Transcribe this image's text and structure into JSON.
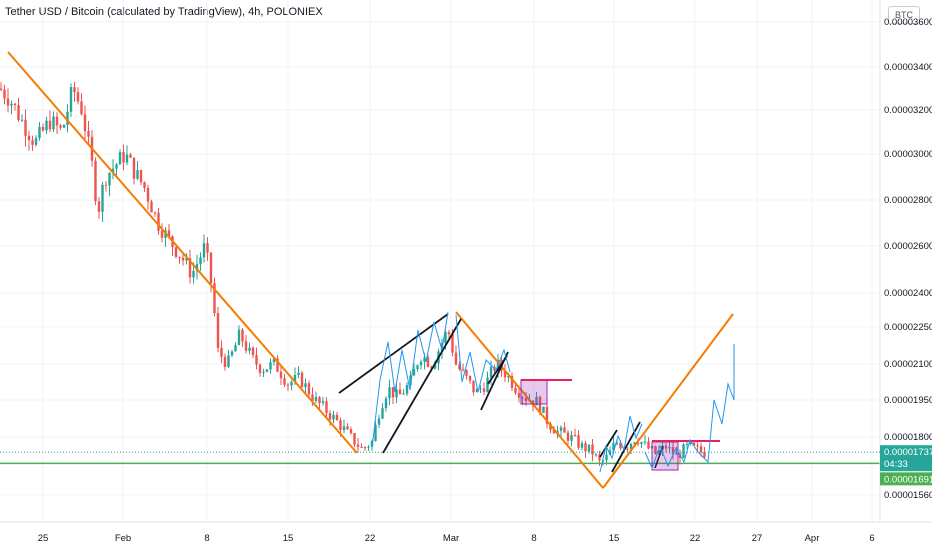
{
  "header": {
    "title": "Tether USD / Bitcoin (calculated by TradingView), 4h, POLONIEX",
    "currency": "BTC"
  },
  "chart_data": {
    "type": "candlestick",
    "y_tick_labels": [
      {
        "label": "0.00003600",
        "value": 3.6e-05
      },
      {
        "label": "0.00003400",
        "value": 3.4e-05
      },
      {
        "label": "0.00003200",
        "value": 3.2e-05
      },
      {
        "label": "0.00003000",
        "value": 3e-05
      },
      {
        "label": "0.00002800",
        "value": 2.8e-05
      },
      {
        "label": "0.00002600",
        "value": 2.6e-05
      },
      {
        "label": "0.00002400",
        "value": 2.4e-05
      },
      {
        "label": "0.00002250",
        "value": 2.25e-05
      },
      {
        "label": "0.00002100",
        "value": 2.1e-05
      },
      {
        "label": "0.00001950",
        "value": 1.95e-05
      },
      {
        "label": "0.00001800",
        "value": 1.8e-05
      },
      {
        "label": "0.00001560",
        "value": 1.56e-05
      }
    ],
    "x_tick_labels": [
      "25",
      "Feb",
      "8",
      "15",
      "22",
      "Mar",
      "8",
      "15",
      "22",
      "27",
      "Apr",
      "6"
    ],
    "last_price": {
      "label": "0.00001737",
      "value": 1.737e-05,
      "countdown": "04:33",
      "color": "#26a69a"
    },
    "support_level": {
      "label": "0.00001691",
      "value": 1.691e-05,
      "color": "#4caf50"
    },
    "colors": {
      "up": "#26a69a",
      "down": "#ef5350",
      "trend": "#f57c00",
      "wedge": "#131722",
      "box": "#e91e63",
      "projection": "#2196f3",
      "support": "#4caf50"
    }
  }
}
